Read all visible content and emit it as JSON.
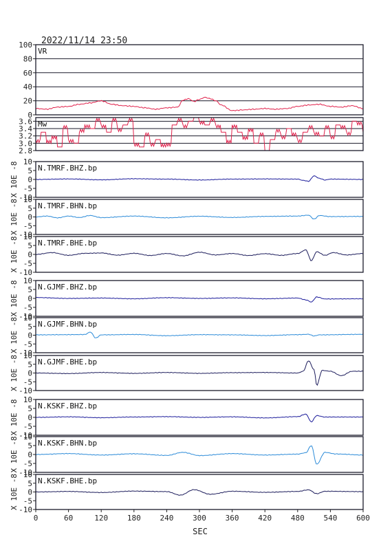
{
  "page": {
    "timestamp": "2022/11/14 23:50"
  },
  "chart_data": {
    "type": "line",
    "x_axis": {
      "label": "SEC",
      "range": [
        0,
        600
      ],
      "ticks": [
        0,
        60,
        120,
        180,
        240,
        300,
        360,
        420,
        480,
        540,
        600
      ]
    },
    "panels": [
      {
        "name": "VR",
        "label": "VR",
        "ylabel": "",
        "ylim": [
          0,
          100
        ],
        "yticks": [
          0,
          20,
          40,
          60,
          80,
          100
        ],
        "grid": true,
        "color": "#e0204a",
        "mode": "line",
        "x": [
          0,
          20,
          40,
          60,
          80,
          100,
          120,
          140,
          160,
          180,
          200,
          220,
          240,
          260,
          270,
          280,
          290,
          300,
          310,
          320,
          330,
          340,
          360,
          380,
          400,
          420,
          440,
          460,
          480,
          500,
          520,
          540,
          560,
          580,
          600
        ],
        "values": [
          9,
          8,
          11,
          12,
          15,
          17,
          20,
          15,
          13,
          12,
          10,
          8,
          10,
          11,
          21,
          23,
          19,
          22,
          25,
          23,
          20,
          14,
          6,
          7,
          8,
          9,
          8,
          9,
          12,
          14,
          15,
          12,
          11,
          13,
          9
        ]
      },
      {
        "name": "Mw",
        "label": "Mw",
        "ylabel": "",
        "ylim": [
          2.8,
          3.7
        ],
        "yticks": [
          2.8,
          3.0,
          3.2,
          3.4,
          3.6
        ],
        "ytick_labels": [
          "2.8",
          "3.0",
          "3.2",
          "3.4",
          "3.6"
        ],
        "grid": true,
        "color": "#e0204a",
        "mode": "step",
        "x": [
          0,
          10,
          20,
          30,
          40,
          50,
          60,
          70,
          80,
          90,
          100,
          110,
          120,
          130,
          140,
          150,
          160,
          170,
          180,
          190,
          200,
          210,
          220,
          230,
          240,
          250,
          260,
          270,
          280,
          290,
          300,
          310,
          320,
          330,
          340,
          350,
          360,
          370,
          380,
          390,
          400,
          410,
          420,
          430,
          440,
          450,
          460,
          470,
          480,
          490,
          500,
          510,
          520,
          530,
          540,
          550,
          560,
          570,
          580,
          590,
          600
        ],
        "values": [
          3.1,
          3.3,
          3.0,
          3.2,
          2.9,
          3.4,
          3.1,
          3.0,
          3.3,
          3.5,
          3.4,
          3.6,
          3.5,
          3.3,
          3.6,
          3.4,
          3.5,
          3.6,
          3.0,
          2.9,
          3.2,
          3.0,
          3.1,
          2.9,
          3.0,
          3.5,
          3.6,
          3.5,
          3.6,
          3.7,
          3.6,
          3.5,
          3.6,
          3.5,
          3.3,
          3.0,
          3.5,
          3.3,
          3.1,
          3.4,
          3.0,
          3.2,
          2.8,
          3.1,
          3.3,
          3.2,
          3.4,
          3.2,
          3.1,
          3.3,
          3.4,
          3.3,
          3.2,
          3.4,
          3.2,
          3.5,
          3.4,
          3.3,
          3.6,
          3.5,
          3.3
        ]
      },
      {
        "name": "N.TMRF.BHZ.bp",
        "label": "N.TMRF.BHZ.bp",
        "ylabel": "X 10E -8",
        "ylim": [
          -10,
          10
        ],
        "yticks": [
          -10,
          -5,
          0,
          5,
          10
        ],
        "grid": false,
        "color": "#1a1a9a",
        "mode": "wave",
        "x": [
          0,
          60,
          120,
          180,
          240,
          300,
          360,
          420,
          480,
          490,
          500,
          510,
          520,
          530,
          540,
          600
        ],
        "values": [
          0,
          0.3,
          -0.2,
          0.4,
          0.2,
          -0.3,
          0.2,
          0.3,
          0.2,
          -0.5,
          -1,
          2,
          0.6,
          -0.3,
          0.2,
          0
        ]
      },
      {
        "name": "N.TMRF.BHN.bp",
        "label": "N.TMRF.BHN.bp",
        "ylabel": "X 10E -8",
        "ylim": [
          -10,
          10
        ],
        "yticks": [
          -10,
          -5,
          0,
          5,
          10
        ],
        "grid": false,
        "color": "#2a8ad8",
        "mode": "wave",
        "x": [
          0,
          20,
          40,
          60,
          80,
          100,
          120,
          180,
          240,
          300,
          360,
          420,
          480,
          500,
          510,
          520,
          540,
          600
        ],
        "values": [
          0,
          0.5,
          -0.5,
          0.5,
          -0.3,
          0.8,
          -0.4,
          0.5,
          -0.5,
          0.4,
          -0.3,
          0.3,
          0.5,
          1,
          -1.2,
          0.8,
          0.2,
          0.3
        ]
      },
      {
        "name": "N.TMRF.BHE.bp",
        "label": "N.TMRF.BHE.bp",
        "ylabel": "X 10E -8",
        "ylim": [
          -10,
          10
        ],
        "yticks": [
          -10,
          -5,
          0,
          5,
          10
        ],
        "grid": false,
        "color": "#1a1a5a",
        "mode": "wave",
        "x": [
          0,
          30,
          60,
          90,
          120,
          150,
          180,
          210,
          240,
          270,
          300,
          330,
          360,
          390,
          420,
          450,
          480,
          495,
          505,
          515,
          530,
          545,
          570,
          600
        ],
        "values": [
          0,
          1,
          -0.5,
          0.6,
          0.8,
          -0.4,
          0.6,
          -0.6,
          0.5,
          -0.8,
          1.2,
          -0.3,
          0.5,
          -0.6,
          0.4,
          -0.5,
          0.5,
          2.5,
          -3.5,
          1.5,
          -0.5,
          1,
          -0.3,
          0.5
        ]
      },
      {
        "name": "N.GJMF.BHZ.bp",
        "label": "N.GJMF.BHZ.bp",
        "ylabel": "X 10E -8",
        "ylim": [
          -10,
          10
        ],
        "yticks": [
          -10,
          -5,
          0,
          5,
          10
        ],
        "grid": false,
        "color": "#1a1a9a",
        "mode": "wave",
        "x": [
          0,
          60,
          120,
          180,
          240,
          300,
          360,
          420,
          480,
          495,
          505,
          515,
          530,
          600
        ],
        "values": [
          0.5,
          0,
          0.2,
          -0.2,
          0.4,
          0,
          0.3,
          -0.2,
          0.2,
          -0.8,
          -2,
          0.8,
          -0.3,
          -0.2
        ]
      },
      {
        "name": "N.GJMF.BHN.bp",
        "label": "N.GJMF.BHN.bp",
        "ylabel": "X 10E -8",
        "ylim": [
          -10,
          10
        ],
        "yticks": [
          -10,
          -5,
          0,
          5,
          10
        ],
        "grid": false,
        "color": "#2a8ad8",
        "mode": "wave",
        "x": [
          0,
          60,
          90,
          100,
          110,
          120,
          180,
          240,
          300,
          360,
          420,
          480,
          500,
          510,
          520,
          600
        ],
        "values": [
          0.2,
          0.3,
          0.4,
          1.8,
          -1.6,
          0.2,
          0.4,
          -0.3,
          0.3,
          0.2,
          -0.2,
          0.3,
          0.5,
          -0.4,
          0.2,
          0.5
        ]
      },
      {
        "name": "N.GJMF.BHE.bp",
        "label": "N.GJMF.BHE.bp",
        "ylabel": "X 10E -8",
        "ylim": [
          -10,
          10
        ],
        "yticks": [
          -10,
          -5,
          0,
          5,
          10
        ],
        "grid": false,
        "color": "#1a1a5a",
        "mode": "wave",
        "x": [
          0,
          60,
          120,
          180,
          240,
          300,
          360,
          420,
          480,
          490,
          500,
          510,
          515,
          525,
          540,
          560,
          580,
          600
        ],
        "values": [
          0,
          -0.3,
          0.3,
          -0.2,
          0.3,
          -0.2,
          0.2,
          0.3,
          0,
          1,
          7,
          2,
          -7,
          1.5,
          1,
          -1.5,
          1,
          1
        ]
      },
      {
        "name": "N.KSKF.BHZ.bp",
        "label": "N.KSKF.BHZ.bp",
        "ylabel": "X 10E -8",
        "ylim": [
          -10,
          10
        ],
        "yticks": [
          -10,
          -5,
          0,
          5,
          10
        ],
        "grid": false,
        "color": "#1a1a9a",
        "mode": "wave",
        "x": [
          0,
          60,
          120,
          180,
          240,
          300,
          360,
          420,
          480,
          495,
          505,
          515,
          530,
          600
        ],
        "values": [
          0,
          0.3,
          -0.2,
          0.2,
          0.4,
          0,
          0.3,
          -0.3,
          0.4,
          1.8,
          -2.5,
          1,
          0.2,
          0.2
        ]
      },
      {
        "name": "N.KSKF.BHN.bp",
        "label": "N.KSKF.BHN.bp",
        "ylabel": "X 10E -8",
        "ylim": [
          -10,
          10
        ],
        "yticks": [
          -10,
          -5,
          0,
          5,
          10
        ],
        "grid": false,
        "color": "#2a8ad8",
        "mode": "wave",
        "x": [
          0,
          60,
          120,
          180,
          240,
          270,
          300,
          360,
          420,
          480,
          495,
          505,
          515,
          530,
          550,
          600
        ],
        "values": [
          0,
          0.5,
          -0.3,
          0.4,
          -0.5,
          1.2,
          -0.6,
          0.5,
          -0.3,
          0.2,
          1,
          5,
          -5.5,
          1.2,
          0.3,
          -0.3
        ]
      },
      {
        "name": "N.KSKF.BHE.bp",
        "label": "N.KSKF.BHE.bp",
        "ylabel": "X 10E -8",
        "ylim": [
          -10,
          10
        ],
        "yticks": [
          -10,
          -5,
          0,
          5,
          10
        ],
        "grid": false,
        "color": "#1a1a5a",
        "mode": "wave",
        "x": [
          0,
          60,
          120,
          180,
          240,
          265,
          290,
          320,
          360,
          420,
          480,
          500,
          515,
          530,
          600
        ],
        "values": [
          0,
          0.3,
          -0.3,
          0.5,
          0.2,
          -1.8,
          1.3,
          -1.3,
          0.4,
          -0.2,
          0.3,
          1.2,
          -1,
          0.4,
          0.2
        ]
      }
    ]
  }
}
